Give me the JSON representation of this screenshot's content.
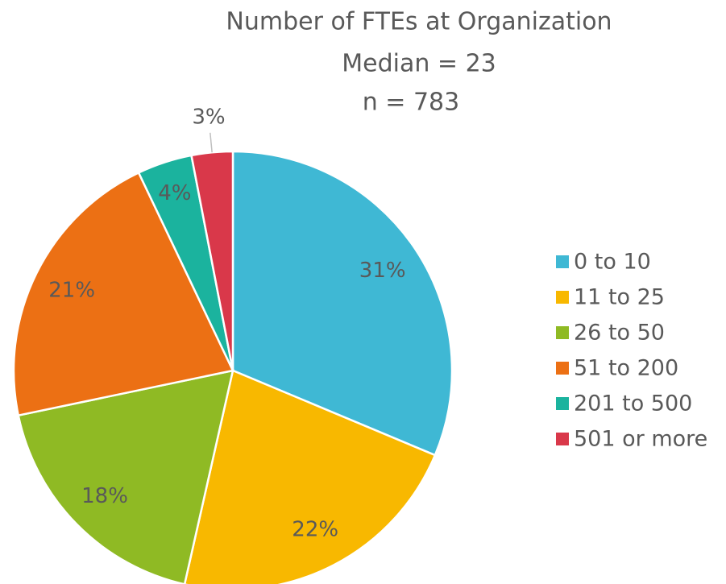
{
  "chart_data": {
    "type": "pie",
    "title": "Number of FTEs at Organization",
    "subtitle": [
      "Median = 23",
      "n = 783"
    ],
    "categories": [
      "0 to 10",
      "11 to 25",
      "26 to 50",
      "51 to 200",
      "201 to 500",
      "501 or more"
    ],
    "values": [
      31,
      22,
      18,
      21,
      4,
      3
    ],
    "value_labels": [
      "31%",
      "22%",
      "18%",
      "21%",
      "4%",
      "3%"
    ],
    "colors": [
      "#3fb8d4",
      "#f8b800",
      "#8fba24",
      "#ec7014",
      "#1bb39e",
      "#d9384a"
    ],
    "legend": "right"
  }
}
